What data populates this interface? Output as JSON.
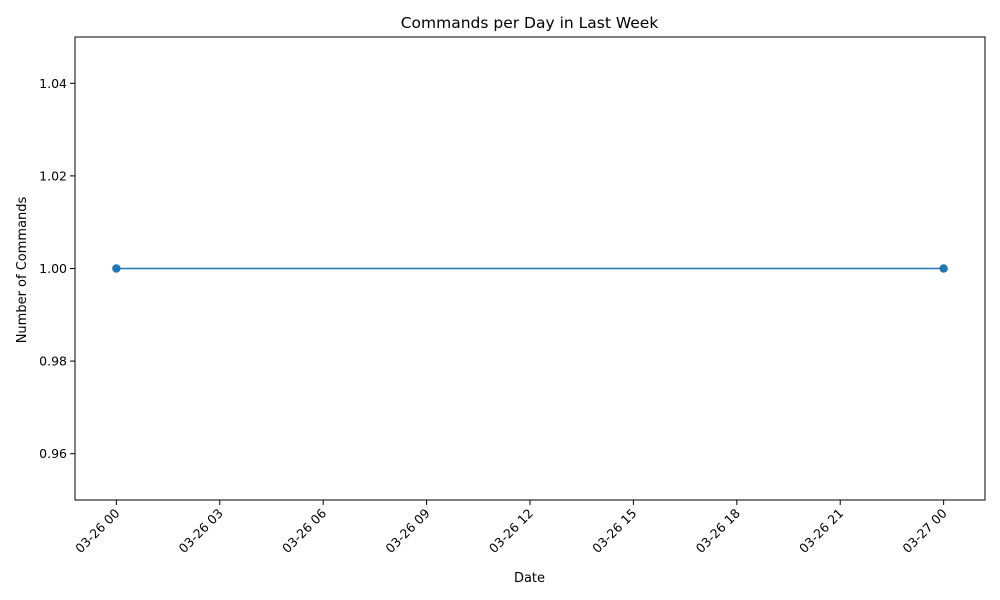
{
  "chart_data": {
    "type": "line",
    "title": "Commands per Day in Last Week",
    "xlabel": "Date",
    "ylabel": "Number of Commands",
    "x_tick_labels": [
      "03-26 00",
      "03-26 03",
      "03-26 06",
      "03-26 09",
      "03-26 12",
      "03-26 15",
      "03-26 18",
      "03-26 21",
      "03-27 00"
    ],
    "y_tick_labels": [
      "0.96",
      "0.98",
      "1.00",
      "1.02",
      "1.04"
    ],
    "y_ticks": [
      0.96,
      0.98,
      1.0,
      1.02,
      1.04
    ],
    "ylim": [
      0.95,
      1.05
    ],
    "x_tick_hours": [
      0,
      3,
      6,
      9,
      12,
      15,
      18,
      21,
      24
    ],
    "xlim_hours": [
      -1.2,
      25.2
    ],
    "series": [
      {
        "x": [
          "03-26 00",
          "03-27 00"
        ],
        "x_hours": [
          0,
          24
        ],
        "values": [
          1,
          1
        ],
        "color": "#1f77b4",
        "marker": "circle"
      }
    ],
    "grid": false,
    "legend": "none"
  }
}
